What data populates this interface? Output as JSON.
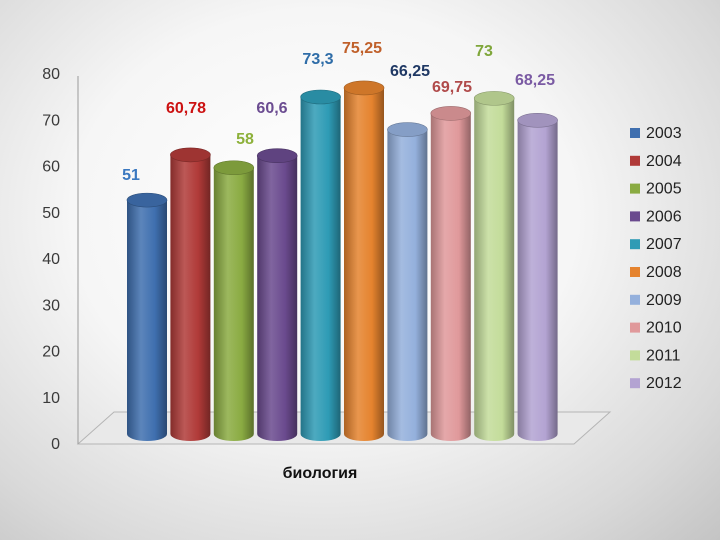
{
  "chart_data": {
    "type": "bar",
    "title": "",
    "xlabel": "биология",
    "ylabel": "",
    "ylim": [
      0,
      80
    ],
    "yticks": [
      0,
      10,
      20,
      30,
      40,
      50,
      60,
      70,
      80
    ],
    "grid": false,
    "legend_position": "right",
    "style": "3d-cylinder",
    "series": [
      {
        "name": "2003",
        "value": 51,
        "label": "51",
        "color": "#3f6faf",
        "label_color": "#3a78c0"
      },
      {
        "name": "2004",
        "value": 60.78,
        "label": "60,78",
        "color": "#b03a38",
        "label_color": "#cc1111"
      },
      {
        "name": "2005",
        "value": 58,
        "label": "58",
        "color": "#8aab42",
        "label_color": "#8db13a"
      },
      {
        "name": "2006",
        "value": 60.6,
        "label": "60,6",
        "color": "#6a4a8e",
        "label_color": "#6b4c91"
      },
      {
        "name": "2007",
        "value": 73.3,
        "label": "73,3",
        "color": "#2e9bb5",
        "label_color": "#2f6da8"
      },
      {
        "name": "2008",
        "value": 75.25,
        "label": "75,25",
        "color": "#e5832e",
        "label_color": "#c0602a"
      },
      {
        "name": "2009",
        "value": 66.25,
        "label": "66,25",
        "color": "#94b0dc",
        "label_color": "#1f3864"
      },
      {
        "name": "2010",
        "value": 69.75,
        "label": "69,75",
        "color": "#e0999b",
        "label_color": "#b04a4a"
      },
      {
        "name": "2011",
        "value": 73,
        "label": "73",
        "color": "#c3dc9a",
        "label_color": "#7fa63a"
      },
      {
        "name": "2012",
        "value": 68.25,
        "label": "68,25",
        "color": "#b3a3d2",
        "label_color": "#7a5aa3"
      }
    ]
  }
}
